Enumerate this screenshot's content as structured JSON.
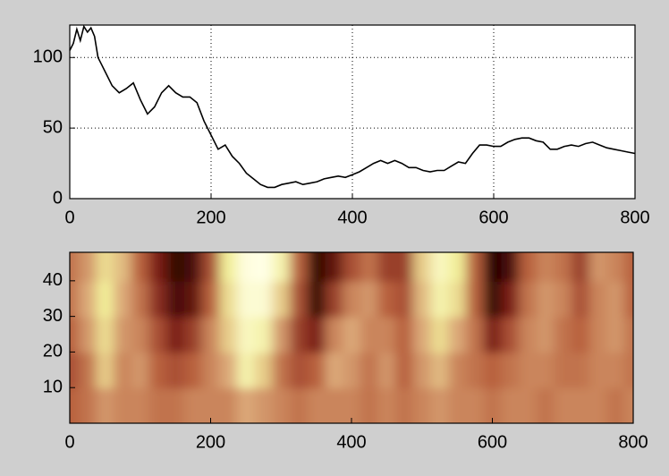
{
  "chart_data": [
    {
      "type": "line",
      "color": "#000000",
      "grid": true,
      "x": [
        0,
        5,
        10,
        15,
        20,
        25,
        30,
        35,
        40,
        45,
        50,
        60,
        70,
        80,
        90,
        100,
        110,
        120,
        130,
        140,
        150,
        160,
        170,
        180,
        190,
        200,
        210,
        220,
        230,
        240,
        250,
        260,
        270,
        280,
        290,
        300,
        310,
        320,
        330,
        340,
        350,
        360,
        370,
        380,
        390,
        400,
        410,
        420,
        430,
        440,
        450,
        460,
        470,
        480,
        490,
        500,
        510,
        520,
        530,
        540,
        550,
        560,
        570,
        580,
        590,
        600,
        610,
        620,
        630,
        640,
        650,
        660,
        670,
        680,
        690,
        700,
        710,
        720,
        730,
        740,
        750,
        760,
        770,
        780,
        790,
        800
      ],
      "values": [
        105,
        110,
        120,
        112,
        122,
        118,
        121,
        115,
        100,
        95,
        90,
        80,
        75,
        78,
        82,
        70,
        60,
        65,
        75,
        80,
        75,
        72,
        72,
        68,
        55,
        45,
        35,
        38,
        30,
        25,
        18,
        14,
        10,
        8,
        8,
        10,
        11,
        12,
        10,
        11,
        12,
        14,
        15,
        16,
        15,
        17,
        19,
        22,
        25,
        27,
        25,
        27,
        25,
        22,
        22,
        20,
        19,
        20,
        20,
        23,
        26,
        25,
        32,
        38,
        38,
        37,
        37,
        40,
        42,
        43,
        43,
        41,
        40,
        35,
        35,
        37,
        38,
        37,
        39,
        40,
        38,
        36,
        35,
        34,
        33,
        32
      ],
      "xlim": [
        0,
        800
      ],
      "ylim": [
        0,
        123
      ],
      "xticks": [
        0,
        200,
        400,
        600,
        800
      ],
      "yticks": [
        0,
        50,
        100
      ]
    },
    {
      "type": "heatmap",
      "colormap": [
        "#1a0000",
        "#7a1e16",
        "#b8613e",
        "#dba878",
        "#f2ef9a",
        "#ffffe6"
      ],
      "zlim": [
        0,
        1
      ],
      "x": [
        0,
        25,
        50,
        75,
        100,
        125,
        150,
        175,
        200,
        225,
        250,
        275,
        300,
        325,
        350,
        375,
        400,
        425,
        450,
        475,
        500,
        525,
        550,
        575,
        600,
        625,
        650,
        675,
        700,
        725,
        750,
        775,
        800
      ],
      "y": [
        5,
        15,
        25,
        35,
        45
      ],
      "z": [
        [
          0.4,
          0.45,
          0.55,
          0.5,
          0.5,
          0.45,
          0.45,
          0.5,
          0.5,
          0.5,
          0.6,
          0.55,
          0.5,
          0.45,
          0.5,
          0.5,
          0.5,
          0.45,
          0.5,
          0.45,
          0.5,
          0.55,
          0.5,
          0.5,
          0.45,
          0.5,
          0.5,
          0.45,
          0.5,
          0.5,
          0.5,
          0.45,
          0.5
        ],
        [
          0.35,
          0.45,
          0.7,
          0.5,
          0.55,
          0.4,
          0.35,
          0.4,
          0.5,
          0.6,
          0.85,
          0.7,
          0.45,
          0.35,
          0.4,
          0.6,
          0.55,
          0.45,
          0.55,
          0.4,
          0.55,
          0.65,
          0.5,
          0.45,
          0.4,
          0.45,
          0.5,
          0.5,
          0.45,
          0.45,
          0.5,
          0.5,
          0.45
        ],
        [
          0.4,
          0.55,
          0.75,
          0.55,
          0.5,
          0.35,
          0.2,
          0.3,
          0.5,
          0.7,
          0.9,
          0.85,
          0.55,
          0.3,
          0.2,
          0.5,
          0.6,
          0.5,
          0.5,
          0.4,
          0.6,
          0.75,
          0.6,
          0.45,
          0.2,
          0.35,
          0.5,
          0.55,
          0.45,
          0.4,
          0.5,
          0.55,
          0.45
        ],
        [
          0.45,
          0.6,
          0.8,
          0.6,
          0.45,
          0.25,
          0.1,
          0.15,
          0.4,
          0.75,
          0.95,
          0.95,
          0.7,
          0.35,
          0.05,
          0.3,
          0.5,
          0.55,
          0.4,
          0.35,
          0.65,
          0.85,
          0.75,
          0.4,
          0.05,
          0.2,
          0.45,
          0.55,
          0.5,
          0.35,
          0.5,
          0.55,
          0.4
        ],
        [
          0.45,
          0.55,
          0.75,
          0.65,
          0.4,
          0.2,
          0.05,
          0.1,
          0.35,
          0.8,
          0.98,
          1.0,
          0.85,
          0.4,
          0.05,
          0.15,
          0.35,
          0.45,
          0.3,
          0.3,
          0.7,
          0.9,
          0.8,
          0.4,
          0.02,
          0.1,
          0.4,
          0.5,
          0.45,
          0.3,
          0.55,
          0.5,
          0.4
        ]
      ],
      "xlim": [
        0,
        800
      ],
      "ylim": [
        0,
        48
      ],
      "xticks": [
        0,
        200,
        400,
        600,
        800
      ],
      "yticks": [
        10,
        20,
        30,
        40
      ]
    }
  ]
}
